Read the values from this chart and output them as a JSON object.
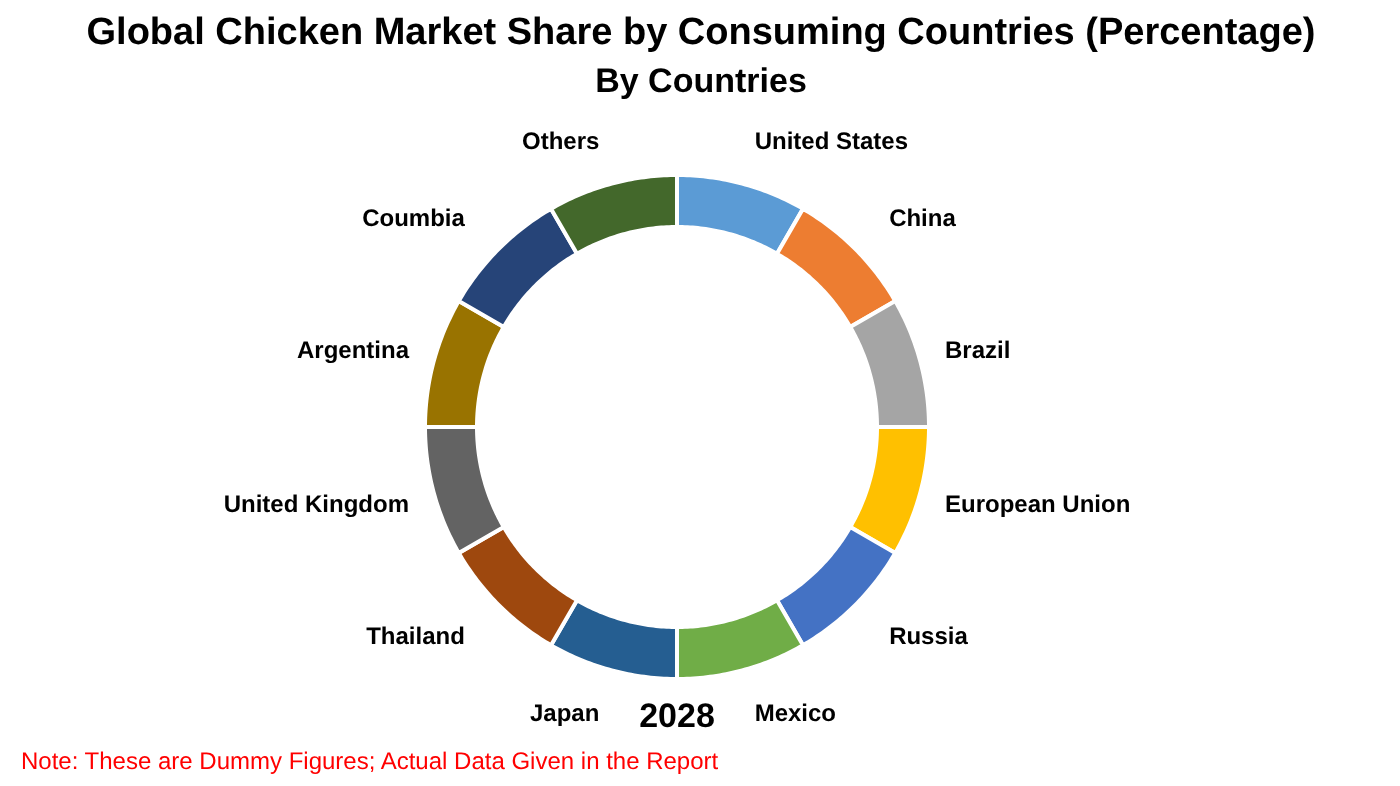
{
  "chart_data": {
    "type": "donut",
    "title": "Global Chicken Market Share by Consuming Countries (Percentage)",
    "subtitle": "By Countries",
    "categories": [
      "United States",
      "China",
      "Brazil",
      "European Union",
      "Russia",
      "Mexico",
      "Japan",
      "Thailand",
      "United Kingdom",
      "Argentina",
      "Coumbia",
      "Others"
    ],
    "values": [
      8.333333,
      8.333333,
      8.333333,
      8.333333,
      8.333333,
      8.333333,
      8.333333,
      8.333333,
      8.333333,
      8.333333,
      8.333333,
      8.333333
    ],
    "colors": [
      "#5b9bd5",
      "#ed7d31",
      "#a5a5a5",
      "#ffc000",
      "#4472c4",
      "#70ad47",
      "#255e91",
      "#9e480e",
      "#636363",
      "#997300",
      "#264478",
      "#43682b"
    ],
    "annotations": [
      "2028",
      "Note: These are Dummy Figures; Actual Data Given in the Report"
    ]
  }
}
